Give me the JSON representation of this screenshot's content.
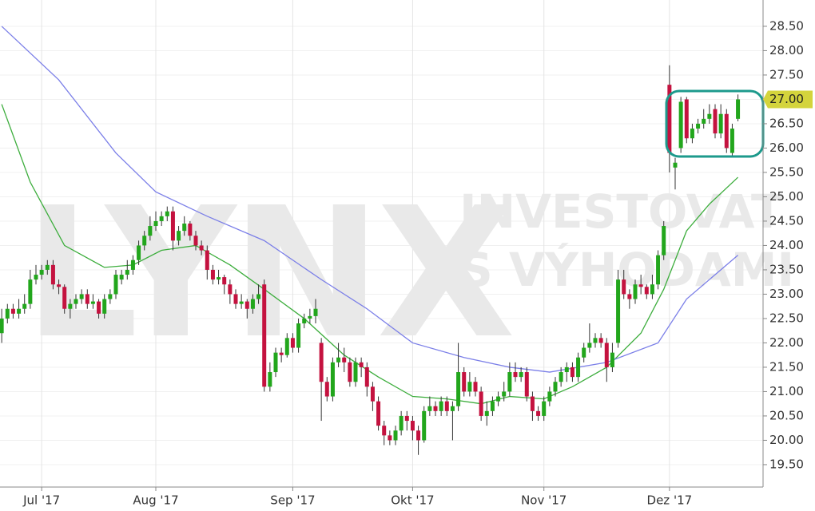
{
  "chart_data": {
    "type": "candlestick",
    "watermark": {
      "logo": "LYNX",
      "line1": "INVESTOVAT",
      "line2": "S VÝHODAMI"
    },
    "x": [
      0,
      1,
      2,
      3,
      4,
      5,
      6,
      7,
      8,
      9,
      10,
      11,
      12,
      13,
      14,
      15,
      16,
      17,
      18,
      19,
      20,
      21,
      22,
      23,
      24,
      25,
      26,
      27,
      28,
      29,
      30,
      31,
      32,
      33,
      34,
      35,
      36,
      37,
      38,
      39,
      40,
      41,
      42,
      43,
      44,
      45,
      46,
      47,
      48,
      49,
      50,
      51,
      52,
      53,
      54,
      55,
      56,
      57,
      58,
      59,
      60,
      61,
      62,
      63,
      64,
      65,
      66,
      67,
      68,
      69,
      70,
      71,
      72,
      73,
      74,
      75,
      76,
      77,
      78,
      79,
      80,
      81,
      82,
      83,
      84,
      85,
      86,
      87,
      88,
      89,
      90,
      91,
      92,
      93,
      94,
      95,
      96,
      97,
      98,
      99,
      100,
      101,
      102,
      103,
      104,
      105,
      106,
      107,
      108,
      109,
      110,
      111,
      112,
      113,
      114,
      115,
      116,
      117,
      118,
      119,
      120,
      121,
      122,
      123,
      124,
      125,
      126,
      127,
      128,
      129
    ],
    "open": [
      22.2,
      22.5,
      22.7,
      22.6,
      22.7,
      22.8,
      23.3,
      23.4,
      23.5,
      23.6,
      23.2,
      23.15,
      22.7,
      22.8,
      22.9,
      23.0,
      22.8,
      22.85,
      22.6,
      22.9,
      23.0,
      23.3,
      23.4,
      23.5,
      23.7,
      24.0,
      24.2,
      24.4,
      24.5,
      24.6,
      24.7,
      24.1,
      24.3,
      24.45,
      24.2,
      24.0,
      23.9,
      23.5,
      23.3,
      23.35,
      23.2,
      23.0,
      22.8,
      22.85,
      22.7,
      22.9,
      23.2,
      21.1,
      21.4,
      21.8,
      21.75,
      22.1,
      21.9,
      22.4,
      22.5,
      22.55,
      22.0,
      21.2,
      20.9,
      21.6,
      21.7,
      21.6,
      21.2,
      21.6,
      21.5,
      21.1,
      20.8,
      20.3,
      20.1,
      20.0,
      20.2,
      20.5,
      20.4,
      20.2,
      20.0,
      20.6,
      20.7,
      20.6,
      20.8,
      20.6,
      20.7,
      21.4,
      21.0,
      21.2,
      21.0,
      20.5,
      20.6,
      20.8,
      20.9,
      21.0,
      21.4,
      21.3,
      21.4,
      20.9,
      20.6,
      20.5,
      20.8,
      21.0,
      21.2,
      21.4,
      21.5,
      21.3,
      21.7,
      21.9,
      22.0,
      22.1,
      22.0,
      21.5,
      22.0,
      23.3,
      23.0,
      22.9,
      23.2,
      23.15,
      23.0,
      23.2,
      23.8,
      27.3,
      25.6,
      26.0,
      27.0,
      26.2,
      26.4,
      26.5,
      26.6,
      26.8,
      26.3,
      26.7,
      25.9,
      26.6
    ],
    "high": [
      22.7,
      22.8,
      22.8,
      22.9,
      23.0,
      23.5,
      23.6,
      23.6,
      23.7,
      23.7,
      23.3,
      23.2,
      22.9,
      23.0,
      23.1,
      23.1,
      23.0,
      22.9,
      23.0,
      23.1,
      23.5,
      23.5,
      23.7,
      23.8,
      24.1,
      24.3,
      24.6,
      24.7,
      24.7,
      24.8,
      24.8,
      24.4,
      24.6,
      24.5,
      24.3,
      24.1,
      24.0,
      23.6,
      23.5,
      23.4,
      23.3,
      23.1,
      23.0,
      22.9,
      23.0,
      23.2,
      23.3,
      21.6,
      21.9,
      21.9,
      22.2,
      22.2,
      22.5,
      22.6,
      22.7,
      22.9,
      22.1,
      21.3,
      21.7,
      22.0,
      21.9,
      21.7,
      21.7,
      21.7,
      21.6,
      21.2,
      20.9,
      20.4,
      20.2,
      20.3,
      20.6,
      20.6,
      20.5,
      20.3,
      20.7,
      20.9,
      20.8,
      20.9,
      20.9,
      20.8,
      22.0,
      21.5,
      21.4,
      21.3,
      21.1,
      20.8,
      20.9,
      21.0,
      21.2,
      21.6,
      21.6,
      21.5,
      21.5,
      21.0,
      20.7,
      20.9,
      21.1,
      21.3,
      21.5,
      21.6,
      21.6,
      21.8,
      22.0,
      22.4,
      22.2,
      22.2,
      22.1,
      22.0,
      23.5,
      23.5,
      23.1,
      23.3,
      23.4,
      23.2,
      23.4,
      23.9,
      24.5,
      27.7,
      25.8,
      27.05,
      27.05,
      26.5,
      26.6,
      26.8,
      26.9,
      26.9,
      26.9,
      26.8,
      26.5,
      27.1
    ],
    "low": [
      22.0,
      22.4,
      22.5,
      22.5,
      22.6,
      22.7,
      23.2,
      23.3,
      23.4,
      23.1,
      23.0,
      22.6,
      22.5,
      22.7,
      22.8,
      22.7,
      22.7,
      22.5,
      22.5,
      22.8,
      22.9,
      23.2,
      23.3,
      23.4,
      23.6,
      23.9,
      24.1,
      24.3,
      24.4,
      24.5,
      23.9,
      24.0,
      24.2,
      24.1,
      23.9,
      23.8,
      23.3,
      23.2,
      23.2,
      23.0,
      22.8,
      22.7,
      22.7,
      22.5,
      22.6,
      22.8,
      21.0,
      21.0,
      21.3,
      21.6,
      21.7,
      21.8,
      21.8,
      22.3,
      22.4,
      22.4,
      20.4,
      20.8,
      20.8,
      21.5,
      21.4,
      21.1,
      21.1,
      21.3,
      20.9,
      20.6,
      20.2,
      19.9,
      19.9,
      19.9,
      20.1,
      20.2,
      20.0,
      19.7,
      19.95,
      20.5,
      20.5,
      20.5,
      20.5,
      20.0,
      20.6,
      20.9,
      20.9,
      20.9,
      20.4,
      20.3,
      20.5,
      20.7,
      20.8,
      20.9,
      21.2,
      21.2,
      20.8,
      20.4,
      20.4,
      20.4,
      20.7,
      20.9,
      21.1,
      21.2,
      21.2,
      21.2,
      21.6,
      21.8,
      21.9,
      21.9,
      21.2,
      21.4,
      21.9,
      22.9,
      22.7,
      22.8,
      23.0,
      22.9,
      22.9,
      23.1,
      23.7,
      25.5,
      25.15,
      25.9,
      26.1,
      26.1,
      26.3,
      26.4,
      26.5,
      26.2,
      26.2,
      25.9,
      25.85,
      26.55
    ],
    "close": [
      22.5,
      22.7,
      22.6,
      22.7,
      22.8,
      23.3,
      23.4,
      23.5,
      23.6,
      23.2,
      23.15,
      22.7,
      22.8,
      22.9,
      23.0,
      22.8,
      22.85,
      22.6,
      22.9,
      23.0,
      23.4,
      23.4,
      23.5,
      23.7,
      24.0,
      24.2,
      24.4,
      24.5,
      24.6,
      24.7,
      24.1,
      24.3,
      24.45,
      24.2,
      24.0,
      23.9,
      23.5,
      23.3,
      23.35,
      23.2,
      23.0,
      22.8,
      22.85,
      22.7,
      22.9,
      23.0,
      21.1,
      21.4,
      21.8,
      21.75,
      22.1,
      21.9,
      22.4,
      22.5,
      22.55,
      22.7,
      21.2,
      20.9,
      21.6,
      21.7,
      21.6,
      21.2,
      21.6,
      21.5,
      21.1,
      20.8,
      20.3,
      20.1,
      20.0,
      20.2,
      20.5,
      20.4,
      20.2,
      20.0,
      20.6,
      20.7,
      20.6,
      20.8,
      20.6,
      20.7,
      21.4,
      21.0,
      21.2,
      21.0,
      20.5,
      20.6,
      20.8,
      20.9,
      21.0,
      21.4,
      21.3,
      21.4,
      20.9,
      20.6,
      20.5,
      20.8,
      21.0,
      21.2,
      21.4,
      21.5,
      21.3,
      21.7,
      21.9,
      22.0,
      22.1,
      22.0,
      21.5,
      21.8,
      23.3,
      23.0,
      22.9,
      23.2,
      23.15,
      23.0,
      23.2,
      23.8,
      24.4,
      25.9,
      25.7,
      26.95,
      26.2,
      26.4,
      26.5,
      26.6,
      26.7,
      26.3,
      26.7,
      26.0,
      26.4,
      27.0
    ],
    "up_color": "#22a61c",
    "down_color": "#c4123f",
    "wick_color": "#333333",
    "moving_averages": [
      {
        "color": "#3cad3c",
        "x": [
          0,
          5,
          11,
          18,
          23,
          28,
          34,
          40,
          46,
          53,
          60,
          66,
          72,
          78,
          84,
          89,
          95,
          100,
          106,
          112,
          116,
          120,
          124,
          129
        ],
        "values": [
          26.9,
          25.3,
          24.0,
          23.55,
          23.6,
          23.9,
          24.0,
          23.6,
          23.1,
          22.5,
          21.75,
          21.3,
          20.9,
          20.85,
          20.75,
          20.9,
          20.85,
          21.1,
          21.5,
          22.2,
          23.1,
          24.3,
          24.85,
          25.4
        ]
      },
      {
        "color": "#7b7fe8",
        "x": [
          0,
          10,
          20,
          27,
          36,
          46,
          56,
          64,
          72,
          81,
          89,
          96,
          106,
          115,
          120,
          129
        ],
        "values": [
          28.5,
          27.4,
          25.9,
          25.1,
          24.6,
          24.1,
          23.3,
          22.7,
          22.0,
          21.7,
          21.5,
          21.4,
          21.6,
          22.0,
          22.9,
          23.8
        ]
      }
    ],
    "last_price_label": {
      "value": 27,
      "label": "27.00"
    },
    "xlim": [
      -0.3,
      133.4
    ],
    "ylim": [
      19.04,
      29.04
    ],
    "xticks": [
      {
        "value": 7,
        "label": "Jul '17"
      },
      {
        "value": 27,
        "label": "Aug '17"
      },
      {
        "value": 51,
        "label": "Sep '17"
      },
      {
        "value": 72,
        "label": "Okt '17"
      },
      {
        "value": 95,
        "label": "Nov '17"
      },
      {
        "value": 117,
        "label": "Dez '17"
      }
    ],
    "yticks": [
      {
        "value": 19.5,
        "label": "19.50"
      },
      {
        "value": 20,
        "label": "20.00"
      },
      {
        "value": 20.5,
        "label": "20.50"
      },
      {
        "value": 21,
        "label": "21.00"
      },
      {
        "value": 21.5,
        "label": "21.50"
      },
      {
        "value": 22,
        "label": "22.00"
      },
      {
        "value": 22.5,
        "label": "22.50"
      },
      {
        "value": 23,
        "label": "23.00"
      },
      {
        "value": 23.5,
        "label": "23.50"
      },
      {
        "value": 24,
        "label": "24.00"
      },
      {
        "value": 24.5,
        "label": "24.50"
      },
      {
        "value": 25,
        "label": "25.00"
      },
      {
        "value": 25.5,
        "label": "25.50"
      },
      {
        "value": 26,
        "label": "26.00"
      },
      {
        "value": 26.5,
        "label": "26.50"
      },
      {
        "value": 27,
        "label": "27.00"
      },
      {
        "value": 27.5,
        "label": "27.50"
      },
      {
        "value": 28,
        "label": "28.00"
      },
      {
        "value": 28.5,
        "label": "28.50"
      }
    ],
    "grid": true
  }
}
